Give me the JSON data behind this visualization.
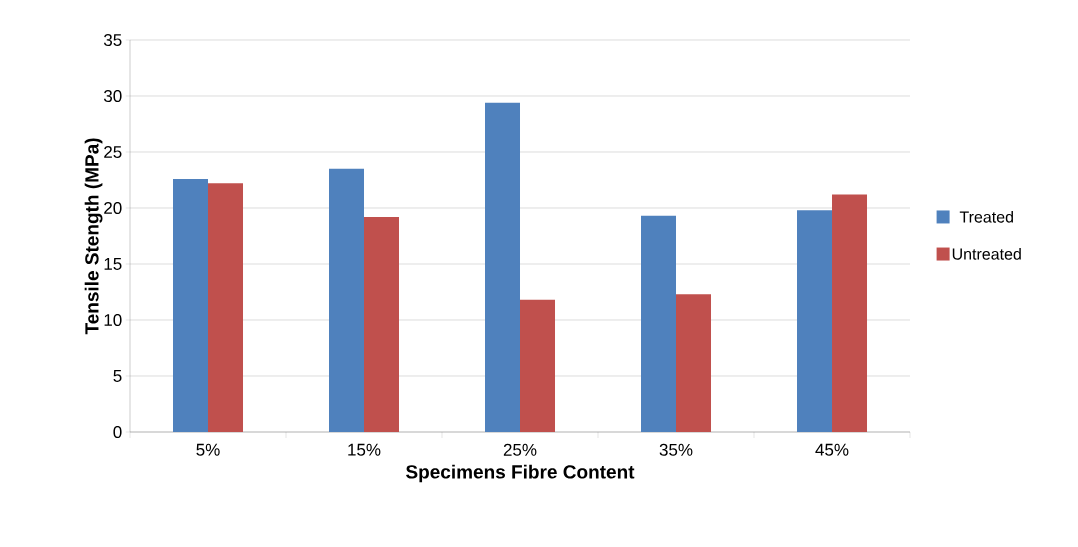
{
  "chart_data": {
    "type": "bar",
    "xlabel": "Specimens Fibre Content",
    "ylabel": "Tensile Stength (MPa)",
    "categories": [
      "5%",
      "15%",
      "25%",
      "35%",
      "45%"
    ],
    "series": [
      {
        "name": "Treated",
        "color": "#4f81bd",
        "values": [
          22.6,
          23.5,
          29.4,
          19.3,
          19.8
        ]
      },
      {
        "name": "Untreated",
        "color": "#c0504d",
        "values": [
          22.2,
          19.2,
          11.8,
          12.3,
          21.2
        ]
      }
    ],
    "ylim": [
      0,
      35
    ],
    "yticks": [
      0,
      5,
      10,
      15,
      20,
      25,
      30,
      35
    ],
    "grid": "y",
    "legend": "right"
  }
}
